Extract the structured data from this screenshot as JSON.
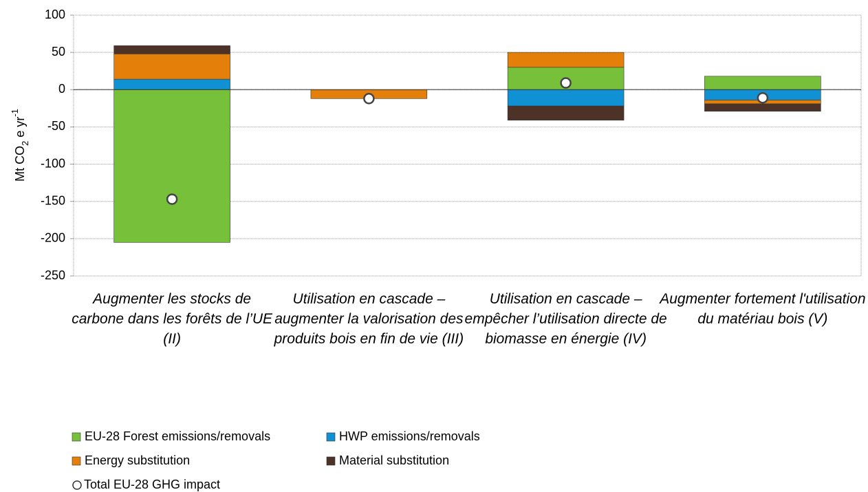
{
  "chart_data": {
    "type": "stacked_bar",
    "y_label_parts": [
      "Mt CO",
      "2",
      " e yr",
      "-1"
    ],
    "categories": [
      "Augmenter les stocks de carbone dans les forêts de l’UE (II)",
      "Utilisation en cascade – augmenter la valorisation des produits bois en fin de vie (III)",
      "Utilisation en cascade – empêcher l’utilisation directe de biomasse en énergie (IV)",
      "Augmenter fortement l'utilisation du matériau bois (V)"
    ],
    "series": [
      {
        "name": "EU-28 Forest emissions/removals",
        "color": "#77c13a",
        "values": [
          -205,
          0,
          30,
          18
        ]
      },
      {
        "name": "HWP emissions/removals",
        "color": "#0f91d4",
        "values": [
          14,
          0,
          -22,
          -14
        ]
      },
      {
        "name": "Energy substitution",
        "color": "#e47f0a",
        "values": [
          34,
          -12,
          20,
          -5
        ]
      },
      {
        "name": "Material substitution",
        "color": "#4d3228",
        "values": [
          11,
          0,
          -19,
          -10
        ]
      }
    ],
    "totals": {
      "name": "Total EU-28 GHG impact",
      "values": [
        -147,
        -12,
        9,
        -11
      ]
    },
    "ylim": [
      -250,
      100
    ],
    "yticks": [
      -250,
      -200,
      -150,
      -100,
      -50,
      0,
      50,
      100
    ],
    "grid": true
  }
}
